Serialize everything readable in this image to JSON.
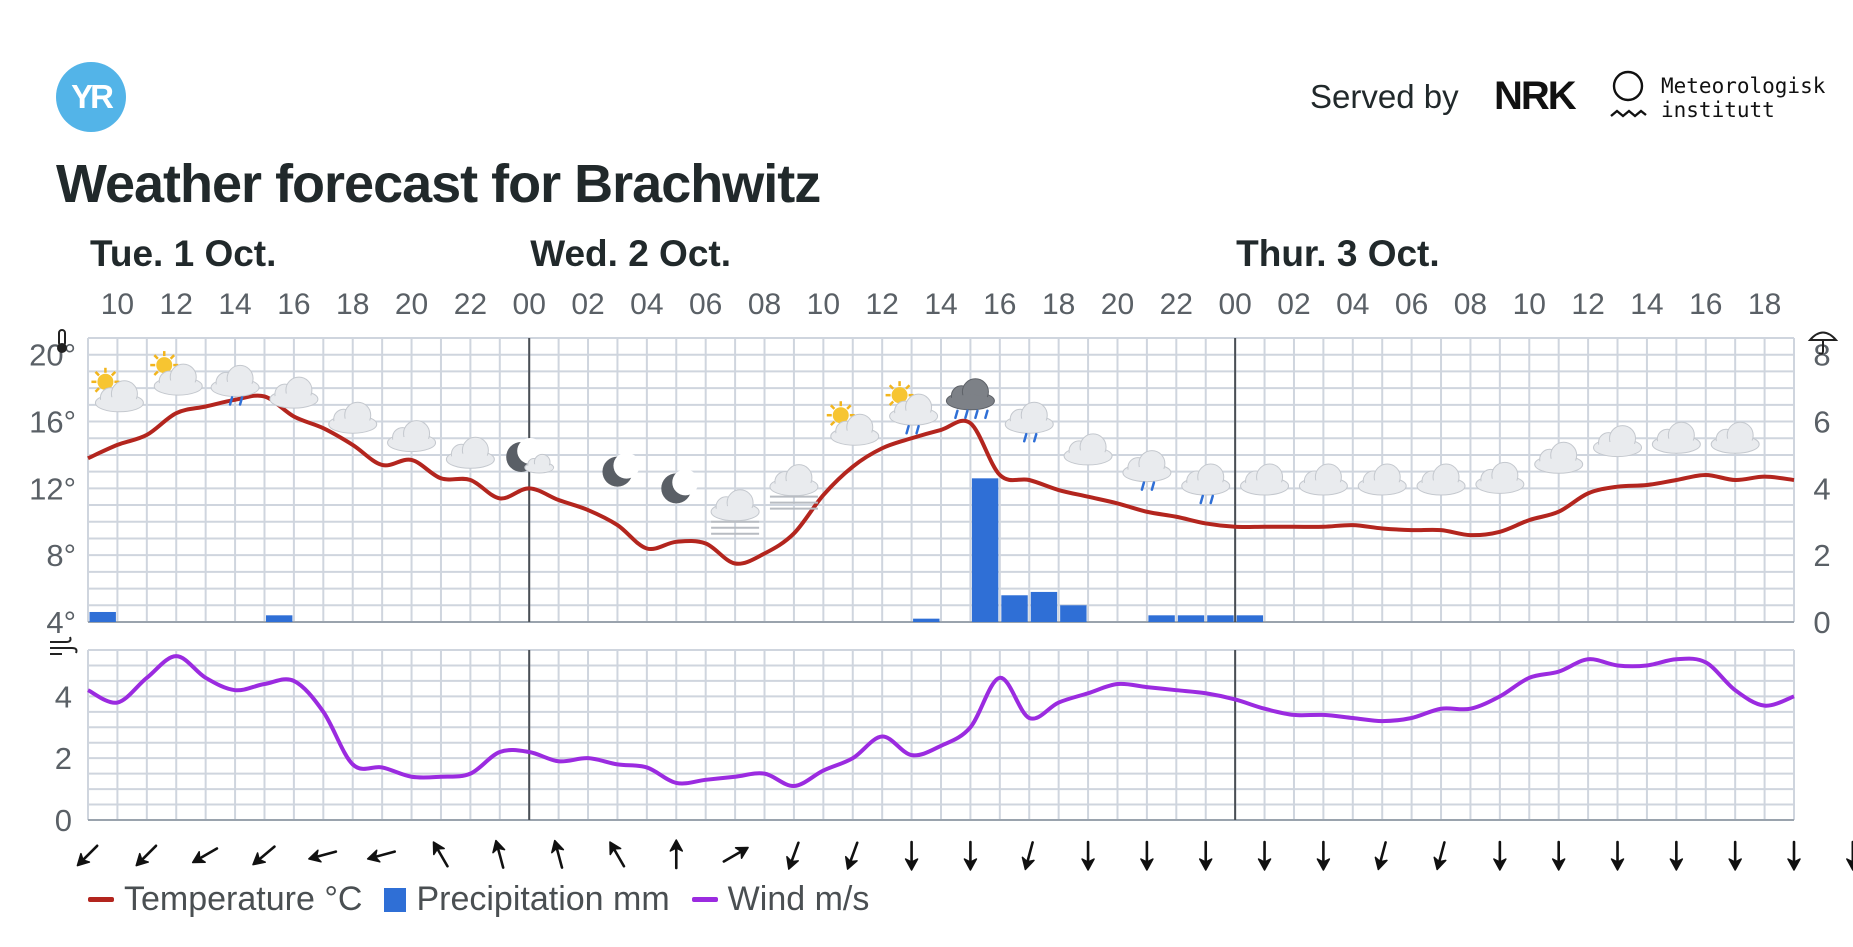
{
  "header": {
    "logo_text": "YR",
    "served_by": "Served by",
    "nrk": "NRK",
    "met": [
      "Meteorologisk",
      "institutt"
    ],
    "title": "Weather forecast for Brachwitz"
  },
  "colors": {
    "temperature": "#b3251e",
    "precipitation": "#2f6fd6",
    "wind": "#9b2be0",
    "grid": "#cfd5de",
    "day_divider": "#4a4f55",
    "text": "#21292b"
  },
  "chart_data": {
    "type": "line",
    "days": [
      {
        "label": "Tue. 1 Oct.",
        "start_hour": 10
      },
      {
        "label": "Wed. 2 Oct.",
        "start_hour": 24
      },
      {
        "label": "Thur. 3 Oct.",
        "start_hour": 48
      }
    ],
    "hour_ticks": [
      "10",
      "12",
      "14",
      "16",
      "18",
      "20",
      "22",
      "00",
      "02",
      "04",
      "06",
      "08",
      "10",
      "12",
      "14",
      "16",
      "18",
      "20",
      "22",
      "00",
      "02",
      "04",
      "06",
      "08",
      "10",
      "12",
      "14",
      "16",
      "18"
    ],
    "x_range_hours": [
      9,
      67
    ],
    "temperature_axis": {
      "ticks": [
        "4°",
        "8°",
        "12°",
        "16°",
        "20°"
      ],
      "range": [
        4,
        21
      ]
    },
    "precip_axis": {
      "ticks": [
        "0",
        "2",
        "4",
        "6",
        "8"
      ],
      "range": [
        0,
        8.5
      ]
    },
    "wind_axis": {
      "ticks": [
        "0",
        "2",
        "4"
      ],
      "range": [
        0,
        5.5
      ]
    },
    "series": [
      {
        "name": "Temperature °C",
        "x": [
          9,
          10,
          11,
          12,
          13,
          14,
          15,
          16,
          17,
          18,
          19,
          20,
          21,
          22,
          23,
          24,
          25,
          26,
          27,
          28,
          29,
          30,
          31,
          32,
          33,
          34,
          35,
          36,
          37,
          38,
          39,
          40,
          41,
          42,
          43,
          44,
          45,
          46,
          47,
          48,
          49,
          50,
          51,
          52,
          53,
          54,
          55,
          56,
          57,
          58,
          59,
          60,
          61,
          62,
          63,
          64,
          65,
          66,
          67
        ],
        "values": [
          13.8,
          14.6,
          15.2,
          16.5,
          16.9,
          17.3,
          17.5,
          16.3,
          15.6,
          14.6,
          13.4,
          13.7,
          12.6,
          12.5,
          11.4,
          12.0,
          11.3,
          10.7,
          9.8,
          8.4,
          8.8,
          8.7,
          7.5,
          8.1,
          9.3,
          11.6,
          13.3,
          14.4,
          15.0,
          15.5,
          15.9,
          12.8,
          12.5,
          11.9,
          11.5,
          11.1,
          10.6,
          10.3,
          9.9,
          9.7,
          9.7,
          9.7,
          9.7,
          9.8,
          9.6,
          9.5,
          9.5,
          9.2,
          9.4,
          10.1,
          10.6,
          11.7,
          12.1,
          12.2,
          12.5,
          12.8,
          12.5,
          12.7,
          12.5
        ]
      },
      {
        "name": "Precipitation mm",
        "x": [
          9,
          15,
          37,
          39,
          40,
          41,
          42,
          45,
          46,
          47,
          48
        ],
        "values": [
          0.3,
          0.2,
          0.1,
          4.3,
          0.8,
          0.9,
          0.5,
          0.2,
          0.2,
          0.2,
          0.2
        ]
      },
      {
        "name": "Wind m/s",
        "x": [
          9,
          10,
          11,
          12,
          13,
          14,
          15,
          16,
          17,
          18,
          19,
          20,
          21,
          22,
          23,
          24,
          25,
          26,
          27,
          28,
          29,
          30,
          31,
          32,
          33,
          34,
          35,
          36,
          37,
          38,
          39,
          40,
          41,
          42,
          43,
          44,
          45,
          46,
          47,
          48,
          49,
          50,
          51,
          52,
          53,
          54,
          55,
          56,
          57,
          58,
          59,
          60,
          61,
          62,
          63,
          64,
          65,
          66,
          67
        ],
        "values": [
          4.2,
          3.8,
          4.6,
          5.3,
          4.6,
          4.2,
          4.4,
          4.5,
          3.5,
          1.8,
          1.7,
          1.4,
          1.4,
          1.5,
          2.2,
          2.2,
          1.9,
          2.0,
          1.8,
          1.7,
          1.2,
          1.3,
          1.4,
          1.5,
          1.1,
          1.6,
          2.0,
          2.7,
          2.1,
          2.4,
          3.0,
          4.6,
          3.3,
          3.8,
          4.1,
          4.4,
          4.3,
          4.2,
          4.1,
          3.9,
          3.6,
          3.4,
          3.4,
          3.3,
          3.2,
          3.3,
          3.6,
          3.6,
          4.0,
          4.6,
          4.8,
          5.2,
          5.0,
          5.0,
          5.2,
          5.1,
          4.2,
          3.7,
          4.0
        ]
      }
    ],
    "weather_symbols": [
      {
        "hour": 10,
        "icon": "partly-cloudy-day-icon",
        "temp": 17.6
      },
      {
        "hour": 12,
        "icon": "partly-cloudy-day-icon",
        "temp": 18.6
      },
      {
        "hour": 14,
        "icon": "light-rain-icon",
        "temp": 18.4
      },
      {
        "hour": 16,
        "icon": "cloudy-icon",
        "temp": 17.7
      },
      {
        "hour": 18,
        "icon": "cloudy-icon",
        "temp": 16.2
      },
      {
        "hour": 20,
        "icon": "cloudy-icon",
        "temp": 15.1
      },
      {
        "hour": 22,
        "icon": "cloudy-icon",
        "temp": 14.1
      },
      {
        "hour": 24,
        "icon": "partly-cloudy-night-icon",
        "temp": 13.7
      },
      {
        "hour": 27,
        "icon": "clear-night-icon",
        "temp": 13.0
      },
      {
        "hour": 29,
        "icon": "clear-night-icon",
        "temp": 12.0
      },
      {
        "hour": 31,
        "icon": "fog-icon",
        "temp": 10.6
      },
      {
        "hour": 33,
        "icon": "fog-icon",
        "temp": 12.1
      },
      {
        "hour": 35,
        "icon": "partly-cloudy-day-icon",
        "temp": 15.6
      },
      {
        "hour": 37,
        "icon": "light-rain-day-icon",
        "temp": 16.8
      },
      {
        "hour": 39,
        "icon": "rain-icon",
        "temp": 17.6
      },
      {
        "hour": 41,
        "icon": "light-rain-icon",
        "temp": 16.2
      },
      {
        "hour": 43,
        "icon": "cloudy-icon",
        "temp": 14.3
      },
      {
        "hour": 45,
        "icon": "light-rain-icon",
        "temp": 13.3
      },
      {
        "hour": 47,
        "icon": "light-rain-icon",
        "temp": 12.5
      },
      {
        "hour": 49,
        "icon": "cloudy-icon",
        "temp": 12.5
      },
      {
        "hour": 51,
        "icon": "cloudy-icon",
        "temp": 12.5
      },
      {
        "hour": 53,
        "icon": "cloudy-icon",
        "temp": 12.5
      },
      {
        "hour": 55,
        "icon": "cloudy-icon",
        "temp": 12.5
      },
      {
        "hour": 57,
        "icon": "cloudy-icon",
        "temp": 12.6
      },
      {
        "hour": 59,
        "icon": "cloudy-icon",
        "temp": 13.8
      },
      {
        "hour": 61,
        "icon": "cloudy-icon",
        "temp": 14.8
      },
      {
        "hour": 63,
        "icon": "cloudy-icon",
        "temp": 15.0
      },
      {
        "hour": 65,
        "icon": "cloudy-icon",
        "temp": 15.0
      }
    ],
    "wind_directions_deg": [
      225,
      225,
      240,
      230,
      255,
      255,
      330,
      345,
      345,
      330,
      0,
      60,
      200,
      200,
      180,
      180,
      195,
      180,
      180,
      180,
      180,
      180,
      195,
      195,
      180,
      180,
      180,
      180,
      180,
      180,
      180
    ],
    "legend": [
      "Temperature °C",
      "Precipitation mm",
      "Wind m/s"
    ],
    "legend_position": "bottom-left",
    "grid": true
  }
}
